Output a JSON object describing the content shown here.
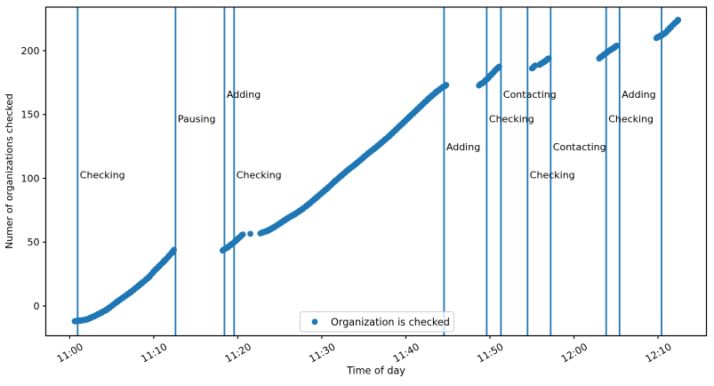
{
  "chart_data": {
    "type": "scatter",
    "title": "",
    "xlabel": "Time of day",
    "ylabel": "Numer of organizations checked",
    "x_axis": {
      "reference": "minutes after 11:00",
      "tick_minutes": [
        0,
        10,
        20,
        30,
        40,
        50,
        60,
        70
      ],
      "tick_labels": [
        "11:00",
        "11:10",
        "11:20",
        "11:30",
        "11:40",
        "11:50",
        "12:00",
        "12:10"
      ],
      "range_minutes": [
        -2.84,
        75.76
      ],
      "tick_rotation_deg": -30
    },
    "y_axis": {
      "ticks": [
        0,
        50,
        100,
        150,
        200
      ],
      "range": [
        -23.35,
        234.15
      ]
    },
    "grid": false,
    "legend": {
      "position": "lower center",
      "entries": [
        {
          "label": "Organization is checked",
          "marker": "dot",
          "color": "#1f77b4"
        }
      ]
    },
    "colors": {
      "points": "#1f77b4",
      "event_line": "#1f77b4",
      "axis": "#000000",
      "text": "#000000",
      "legend_border": "#cccccc",
      "legend_fill": "#ffffff"
    },
    "event_lines": [
      {
        "minute": 0.95,
        "approx_time": "11:01",
        "label": "Checking",
        "label_value": 100
      },
      {
        "minute": 12.59,
        "approx_time": "11:13",
        "label": "Pausing",
        "label_value": 144
      },
      {
        "minute": 18.41,
        "approx_time": "11:18",
        "label": "Adding",
        "label_value": 163
      },
      {
        "minute": 19.57,
        "approx_time": "11:20",
        "label": "Checking",
        "label_value": 100
      },
      {
        "minute": 44.54,
        "approx_time": "11:45",
        "label": "Adding",
        "label_value": 122
      },
      {
        "minute": 49.62,
        "approx_time": "11:50",
        "label": "Checking",
        "label_value": 144
      },
      {
        "minute": 51.31,
        "approx_time": "11:51",
        "label": "Contacting",
        "label_value": 163
      },
      {
        "minute": 54.48,
        "approx_time": "11:54",
        "label": "Checking",
        "label_value": 100
      },
      {
        "minute": 57.23,
        "approx_time": "11:57",
        "label": "Contacting",
        "label_value": 122
      },
      {
        "minute": 63.83,
        "approx_time": "12:04",
        "label": "Checking",
        "label_value": 144
      },
      {
        "minute": 65.42,
        "approx_time": "12:05",
        "label": "Adding",
        "label_value": 163
      },
      {
        "minute": 70.42,
        "approx_time": "12:10",
        "label": "",
        "label_value": null
      }
    ],
    "series": [
      {
        "name": "Organization is checked",
        "marker_radius_px": 3.4,
        "segments": [
          {
            "point_step_min": 0.12,
            "anchors": [
              [
                0.6,
                -12
              ],
              [
                1.3,
                -11.5
              ],
              [
                2.1,
                -10.5
              ],
              [
                3.1,
                -7.5
              ],
              [
                4.4,
                -3
              ],
              [
                5.8,
                4
              ],
              [
                7.3,
                11
              ],
              [
                8.7,
                18.5
              ],
              [
                9.5,
                23
              ],
              [
                10.0,
                27
              ],
              [
                10.7,
                31.5
              ],
              [
                11.3,
                35.5
              ],
              [
                11.8,
                39
              ],
              [
                12.2,
                42
              ],
              [
                12.4,
                44
              ]
            ]
          },
          {
            "point_step_min": 0.12,
            "anchors": [
              [
                18.2,
                43.5
              ],
              [
                18.9,
                46.5
              ],
              [
                19.5,
                49.5
              ],
              [
                20.0,
                52.5
              ],
              [
                20.6,
                56
              ]
            ]
          },
          {
            "point_step_min": 0.12,
            "anchors": [
              [
                21.5,
                56.5
              ]
            ]
          },
          {
            "point_step_min": 0.12,
            "anchors": [
              [
                22.7,
                57
              ],
              [
                23.6,
                59
              ],
              [
                24.4,
                62
              ],
              [
                25.2,
                65.5
              ],
              [
                26.0,
                69
              ],
              [
                26.8,
                72
              ],
              [
                27.6,
                75.5
              ],
              [
                28.4,
                79.5
              ],
              [
                29.2,
                84
              ],
              [
                30.0,
                88.5
              ],
              [
                30.8,
                93
              ],
              [
                31.6,
                98
              ],
              [
                32.4,
                102.5
              ],
              [
                33.2,
                107
              ],
              [
                34.0,
                111
              ],
              [
                34.8,
                115.5
              ],
              [
                35.6,
                120
              ],
              [
                36.4,
                124
              ],
              [
                37.2,
                128.5
              ],
              [
                38.0,
                133
              ],
              [
                38.8,
                138
              ],
              [
                39.6,
                143
              ],
              [
                40.4,
                148
              ],
              [
                41.2,
                153
              ],
              [
                42.0,
                158
              ],
              [
                42.8,
                163
              ],
              [
                43.6,
                167.5
              ],
              [
                44.3,
                171
              ],
              [
                44.8,
                173
              ]
            ]
          },
          {
            "point_step_min": 0.12,
            "anchors": [
              [
                48.7,
                173
              ],
              [
                49.2,
                175
              ],
              [
                49.7,
                178
              ],
              [
                50.2,
                181.5
              ],
              [
                50.7,
                185
              ],
              [
                51.1,
                187.5
              ]
            ]
          },
          {
            "point_step_min": 0.12,
            "anchors": [
              [
                55.0,
                186
              ],
              [
                55.4,
                188.5
              ]
            ]
          },
          {
            "point_step_min": 0.12,
            "anchors": [
              [
                55.9,
                189
              ],
              [
                56.5,
                191.5
              ],
              [
                57.0,
                194
              ]
            ]
          },
          {
            "point_step_min": 0.12,
            "anchors": [
              [
                63.0,
                194
              ],
              [
                63.6,
                197
              ],
              [
                64.2,
                200
              ],
              [
                64.8,
                202.5
              ],
              [
                65.1,
                204
              ]
            ]
          },
          {
            "point_step_min": 0.12,
            "anchors": [
              [
                69.8,
                210
              ],
              [
                70.4,
                212
              ],
              [
                70.9,
                214
              ],
              [
                71.3,
                217
              ],
              [
                71.9,
                221
              ],
              [
                72.4,
                224
              ]
            ]
          }
        ]
      }
    ]
  }
}
